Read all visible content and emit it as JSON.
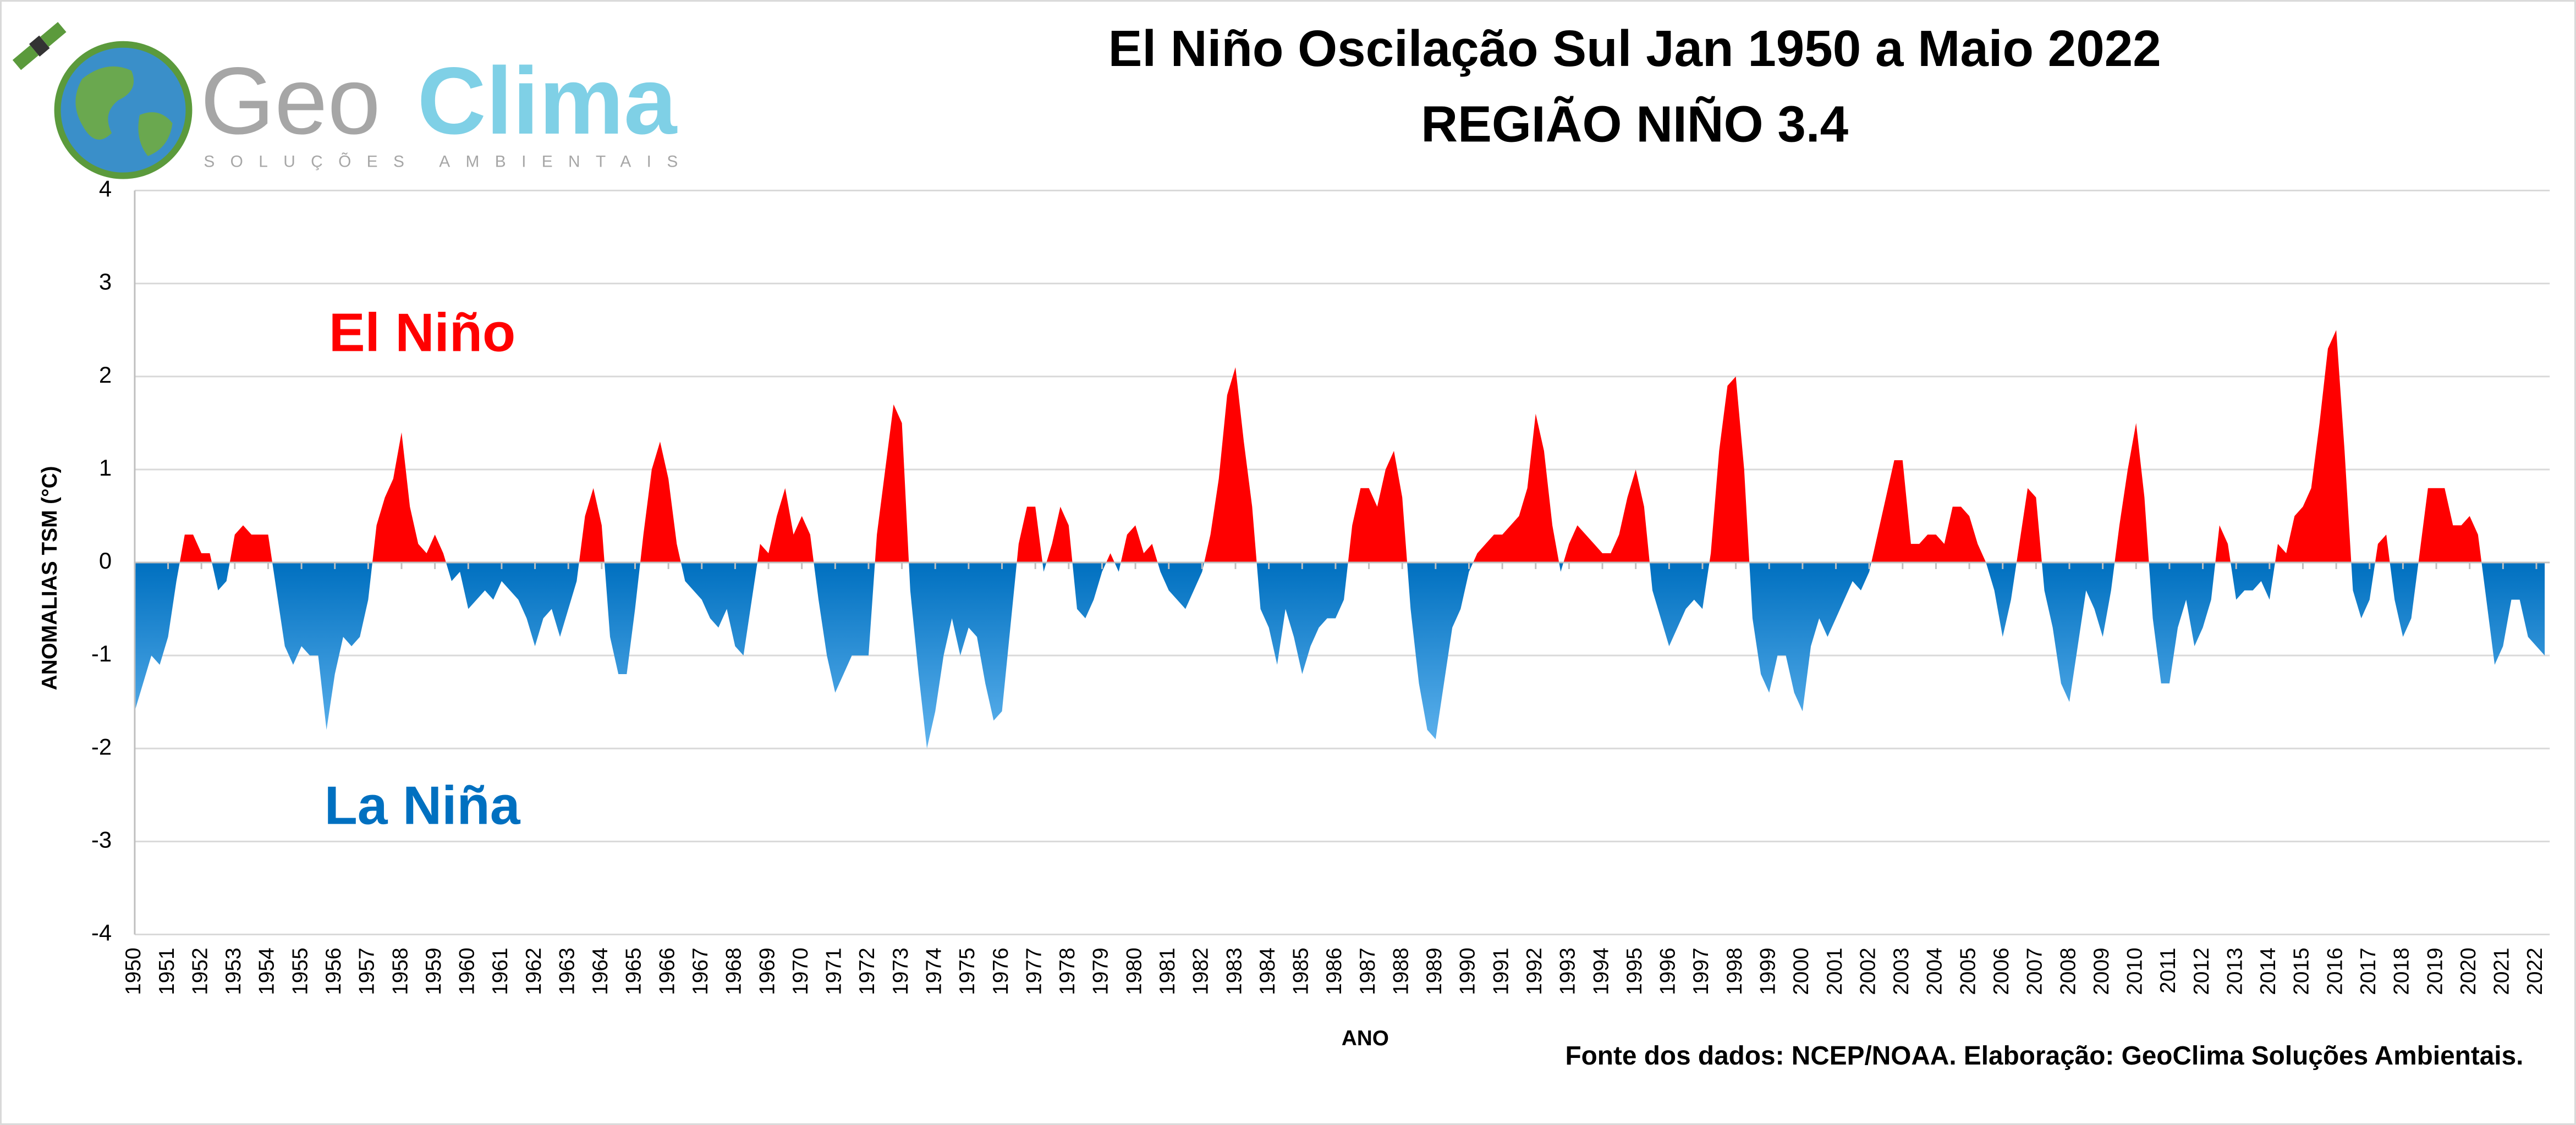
{
  "logo": {
    "name_a": "Geo",
    "name_b": "Clima",
    "tagline": "SOLUÇÕES AMBIENTAIS"
  },
  "chart_data": {
    "type": "area",
    "title": "El Niño Oscilação Sul  Jan 1950 a Maio 2022",
    "subtitle": "REGIÃO NIÑO 3.4",
    "annotations": [
      "El Niño",
      "La Niña"
    ],
    "y_label": "ANOMALIAS TSM (°C)",
    "x_label": "ANO",
    "source": "Fonte dos dados: NCEP/NOAA. Elaboração: GeoClima Soluções Ambientais.",
    "positive_color": "#ff0000",
    "negative_color": "#0070c0",
    "grid": true,
    "xlim": [
      1950,
      2022.4
    ],
    "ylim": [
      -4,
      4
    ],
    "yticks": [
      -4,
      -3,
      -2,
      -1,
      0,
      1,
      2,
      3,
      4
    ],
    "xticks": [
      1950,
      1951,
      1952,
      1953,
      1954,
      1955,
      1956,
      1957,
      1958,
      1959,
      1960,
      1961,
      1962,
      1963,
      1964,
      1965,
      1966,
      1967,
      1968,
      1969,
      1970,
      1971,
      1972,
      1973,
      1974,
      1975,
      1976,
      1977,
      1978,
      1979,
      1980,
      1981,
      1982,
      1983,
      1984,
      1985,
      1986,
      1987,
      1988,
      1989,
      1990,
      1991,
      1992,
      1993,
      1994,
      1995,
      1996,
      1997,
      1998,
      1999,
      2000,
      2001,
      2002,
      2003,
      2004,
      2005,
      2006,
      2007,
      2008,
      2009,
      2010,
      2011,
      2012,
      2013,
      2014,
      2015,
      2016,
      2017,
      2018,
      2019,
      2020,
      2021,
      2022
    ],
    "x": [
      1950,
      1950.25,
      1950.5,
      1950.75,
      1951,
      1951.25,
      1951.5,
      1951.75,
      1952,
      1952.25,
      1952.5,
      1952.75,
      1953,
      1953.25,
      1953.5,
      1953.75,
      1954,
      1954.25,
      1954.5,
      1954.75,
      1955,
      1955.25,
      1955.5,
      1955.75,
      1956,
      1956.25,
      1956.5,
      1956.75,
      1957,
      1957.25,
      1957.5,
      1957.75,
      1958,
      1958.25,
      1958.5,
      1958.75,
      1959,
      1959.25,
      1959.5,
      1959.75,
      1960,
      1960.25,
      1960.5,
      1960.75,
      1961,
      1961.25,
      1961.5,
      1961.75,
      1962,
      1962.25,
      1962.5,
      1962.75,
      1963,
      1963.25,
      1963.5,
      1963.75,
      1964,
      1964.25,
      1964.5,
      1964.75,
      1965,
      1965.25,
      1965.5,
      1965.75,
      1966,
      1966.25,
      1966.5,
      1966.75,
      1967,
      1967.25,
      1967.5,
      1967.75,
      1968,
      1968.25,
      1968.5,
      1968.75,
      1969,
      1969.25,
      1969.5,
      1969.75,
      1970,
      1970.25,
      1970.5,
      1970.75,
      1971,
      1971.25,
      1971.5,
      1971.75,
      1972,
      1972.25,
      1972.5,
      1972.75,
      1973,
      1973.25,
      1973.5,
      1973.75,
      1974,
      1974.25,
      1974.5,
      1974.75,
      1975,
      1975.25,
      1975.5,
      1975.75,
      1976,
      1976.25,
      1976.5,
      1976.75,
      1977,
      1977.25,
      1977.5,
      1977.75,
      1978,
      1978.25,
      1978.5,
      1978.75,
      1979,
      1979.25,
      1979.5,
      1979.75,
      1980,
      1980.25,
      1980.5,
      1980.75,
      1981,
      1981.25,
      1981.5,
      1981.75,
      1982,
      1982.25,
      1982.5,
      1982.75,
      1983,
      1983.25,
      1983.5,
      1983.75,
      1984,
      1984.25,
      1984.5,
      1984.75,
      1985,
      1985.25,
      1985.5,
      1985.75,
      1986,
      1986.25,
      1986.5,
      1986.75,
      1987,
      1987.25,
      1987.5,
      1987.75,
      1988,
      1988.25,
      1988.5,
      1988.75,
      1989,
      1989.25,
      1989.5,
      1989.75,
      1990,
      1990.25,
      1990.5,
      1990.75,
      1991,
      1991.25,
      1991.5,
      1991.75,
      1992,
      1992.25,
      1992.5,
      1992.75,
      1993,
      1993.25,
      1993.5,
      1993.75,
      1994,
      1994.25,
      1994.5,
      1994.75,
      1995,
      1995.25,
      1995.5,
      1995.75,
      1996,
      1996.25,
      1996.5,
      1996.75,
      1997,
      1997.25,
      1997.5,
      1997.75,
      1998,
      1998.25,
      1998.5,
      1998.75,
      1999,
      1999.25,
      1999.5,
      1999.75,
      2000,
      2000.25,
      2000.5,
      2000.75,
      2001,
      2001.25,
      2001.5,
      2001.75,
      2002,
      2002.25,
      2002.5,
      2002.75,
      2003,
      2003.25,
      2003.5,
      2003.75,
      2004,
      2004.25,
      2004.5,
      2004.75,
      2005,
      2005.25,
      2005.5,
      2005.75,
      2006,
      2006.25,
      2006.5,
      2006.75,
      2007,
      2007.25,
      2007.5,
      2007.75,
      2008,
      2008.25,
      2008.5,
      2008.75,
      2009,
      2009.25,
      2009.5,
      2009.75,
      2010,
      2010.25,
      2010.5,
      2010.75,
      2011,
      2011.25,
      2011.5,
      2011.75,
      2012,
      2012.25,
      2012.5,
      2012.75,
      2013,
      2013.25,
      2013.5,
      2013.75,
      2014,
      2014.25,
      2014.5,
      2014.75,
      2015,
      2015.25,
      2015.5,
      2015.75,
      2016,
      2016.25,
      2016.5,
      2016.75,
      2017,
      2017.25,
      2017.5,
      2017.75,
      2018,
      2018.25,
      2018.5,
      2018.75,
      2019,
      2019.25,
      2019.5,
      2019.75,
      2020,
      2020.25,
      2020.5,
      2020.75,
      2021,
      2021.25,
      2021.5,
      2021.75,
      2022,
      2022.25
    ],
    "values": [
      -1.6,
      -1.3,
      -1.0,
      -1.1,
      -0.8,
      -0.2,
      0.3,
      0.3,
      0.1,
      0.1,
      -0.3,
      -0.2,
      0.3,
      0.4,
      0.3,
      0.3,
      0.3,
      -0.3,
      -0.9,
      -1.1,
      -0.9,
      -1.0,
      -1.0,
      -1.8,
      -1.2,
      -0.8,
      -0.9,
      -0.8,
      -0.4,
      0.4,
      0.7,
      0.9,
      1.4,
      0.6,
      0.2,
      0.1,
      0.3,
      0.1,
      -0.2,
      -0.1,
      -0.5,
      -0.4,
      -0.3,
      -0.4,
      -0.2,
      -0.3,
      -0.4,
      -0.6,
      -0.9,
      -0.6,
      -0.5,
      -0.8,
      -0.5,
      -0.2,
      0.5,
      0.8,
      0.4,
      -0.8,
      -1.2,
      -1.2,
      -0.5,
      0.3,
      1.0,
      1.3,
      0.9,
      0.2,
      -0.2,
      -0.3,
      -0.4,
      -0.6,
      -0.7,
      -0.5,
      -0.9,
      -1.0,
      -0.4,
      0.2,
      0.1,
      0.5,
      0.8,
      0.3,
      0.5,
      0.3,
      -0.4,
      -1.0,
      -1.4,
      -1.2,
      -1.0,
      -1.0,
      -1.0,
      0.3,
      1.0,
      1.7,
      1.5,
      -0.3,
      -1.2,
      -2.0,
      -1.6,
      -1.0,
      -0.6,
      -1.0,
      -0.7,
      -0.8,
      -1.3,
      -1.7,
      -1.6,
      -0.7,
      0.2,
      0.6,
      0.6,
      -0.1,
      0.2,
      0.6,
      0.4,
      -0.5,
      -0.6,
      -0.4,
      -0.1,
      0.1,
      -0.1,
      0.3,
      0.4,
      0.1,
      0.2,
      -0.1,
      -0.3,
      -0.4,
      -0.5,
      -0.3,
      -0.1,
      0.3,
      0.9,
      1.8,
      2.1,
      1.3,
      0.6,
      -0.5,
      -0.7,
      -1.1,
      -0.5,
      -0.8,
      -1.2,
      -0.9,
      -0.7,
      -0.6,
      -0.6,
      -0.4,
      0.4,
      0.8,
      0.8,
      0.6,
      1.0,
      1.2,
      0.7,
      -0.5,
      -1.3,
      -1.8,
      -1.9,
      -1.3,
      -0.7,
      -0.5,
      -0.1,
      0.1,
      0.2,
      0.3,
      0.3,
      0.4,
      0.5,
      0.8,
      1.6,
      1.2,
      0.4,
      -0.1,
      0.2,
      0.4,
      0.3,
      0.2,
      0.1,
      0.1,
      0.3,
      0.7,
      1.0,
      0.6,
      -0.3,
      -0.6,
      -0.9,
      -0.7,
      -0.5,
      -0.4,
      -0.5,
      0.1,
      1.2,
      1.9,
      2.0,
      1.0,
      -0.6,
      -1.2,
      -1.4,
      -1.0,
      -1.0,
      -1.4,
      -1.6,
      -0.9,
      -0.6,
      -0.8,
      -0.6,
      -0.4,
      -0.2,
      -0.3,
      -0.1,
      0.3,
      0.7,
      1.1,
      1.1,
      0.2,
      0.2,
      0.3,
      0.3,
      0.2,
      0.6,
      0.6,
      0.5,
      0.2,
      0.0,
      -0.3,
      -0.8,
      -0.4,
      0.2,
      0.8,
      0.7,
      -0.3,
      -0.7,
      -1.3,
      -1.5,
      -0.9,
      -0.3,
      -0.5,
      -0.8,
      -0.3,
      0.4,
      1.0,
      1.5,
      0.7,
      -0.6,
      -1.3,
      -1.3,
      -0.7,
      -0.4,
      -0.9,
      -0.7,
      -0.4,
      0.4,
      0.2,
      -0.4,
      -0.3,
      -0.3,
      -0.2,
      -0.4,
      0.2,
      0.1,
      0.5,
      0.6,
      0.8,
      1.5,
      2.3,
      2.5,
      1.2,
      -0.3,
      -0.6,
      -0.4,
      0.2,
      0.3,
      -0.4,
      -0.8,
      -0.6,
      0.1,
      0.8,
      0.8,
      0.8,
      0.4,
      0.4,
      0.5,
      0.3,
      -0.4,
      -1.1,
      -0.9,
      -0.4,
      -0.4,
      -0.8,
      -0.9,
      -1.0
    ]
  }
}
